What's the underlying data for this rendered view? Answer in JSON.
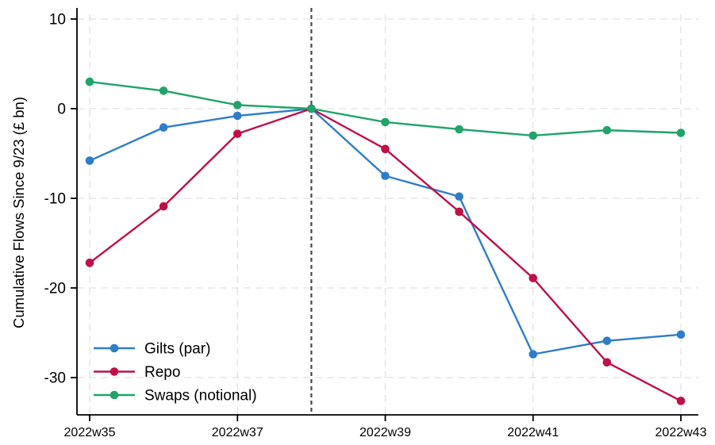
{
  "chart_data": {
    "type": "line",
    "title": "",
    "xlabel": "",
    "ylabel": "Cumulative Flows Since 9/23 (£ bn)",
    "x": [
      "2022w35",
      "2022w36",
      "2022w37",
      "2022w38",
      "2022w39",
      "2022w40",
      "2022w41",
      "2022w42",
      "2022w43"
    ],
    "x_tick_labels": [
      "2022w35",
      "2022w37",
      "2022w39",
      "2022w41",
      "2022w43"
    ],
    "x_tick_indices": [
      0,
      2,
      4,
      6,
      8
    ],
    "y_ticks": [
      10,
      0,
      -10,
      -20,
      -30
    ],
    "y_tick_labels": [
      "10",
      "0",
      "-10",
      "-20",
      "-30"
    ],
    "ylim": [
      -34,
      11.2
    ],
    "grid": "light gray dashed horizontal at y ticks and vertical at labeled x ticks",
    "legend_position": "inside bottom-left",
    "reference_line": {
      "x": "2022w38",
      "x_index": 3,
      "style": "dashed",
      "color": "#4a4a4a"
    },
    "series": [
      {
        "name": "Gilts (par)",
        "color": "#2e7dca",
        "marker": "circle",
        "values": [
          -5.8,
          -2.1,
          -0.8,
          0,
          -7.5,
          -9.8,
          -27.4,
          -25.9,
          -25.2
        ]
      },
      {
        "name": "Repo",
        "color": "#c01048",
        "marker": "circle",
        "values": [
          -17.2,
          -10.9,
          -2.8,
          0,
          -4.5,
          -11.5,
          -18.9,
          -28.3,
          -32.6
        ]
      },
      {
        "name": "Swaps (notional)",
        "color": "#21a36b",
        "marker": "circle",
        "values": [
          3.0,
          2.0,
          0.4,
          0,
          -1.5,
          -2.3,
          -3.0,
          -2.4,
          -2.7
        ]
      }
    ],
    "colors": {
      "grid": "#e2e2e2",
      "axis": "#000000",
      "text": "#000000",
      "refline": "#4a4a4a",
      "background": "#ffffff"
    }
  }
}
